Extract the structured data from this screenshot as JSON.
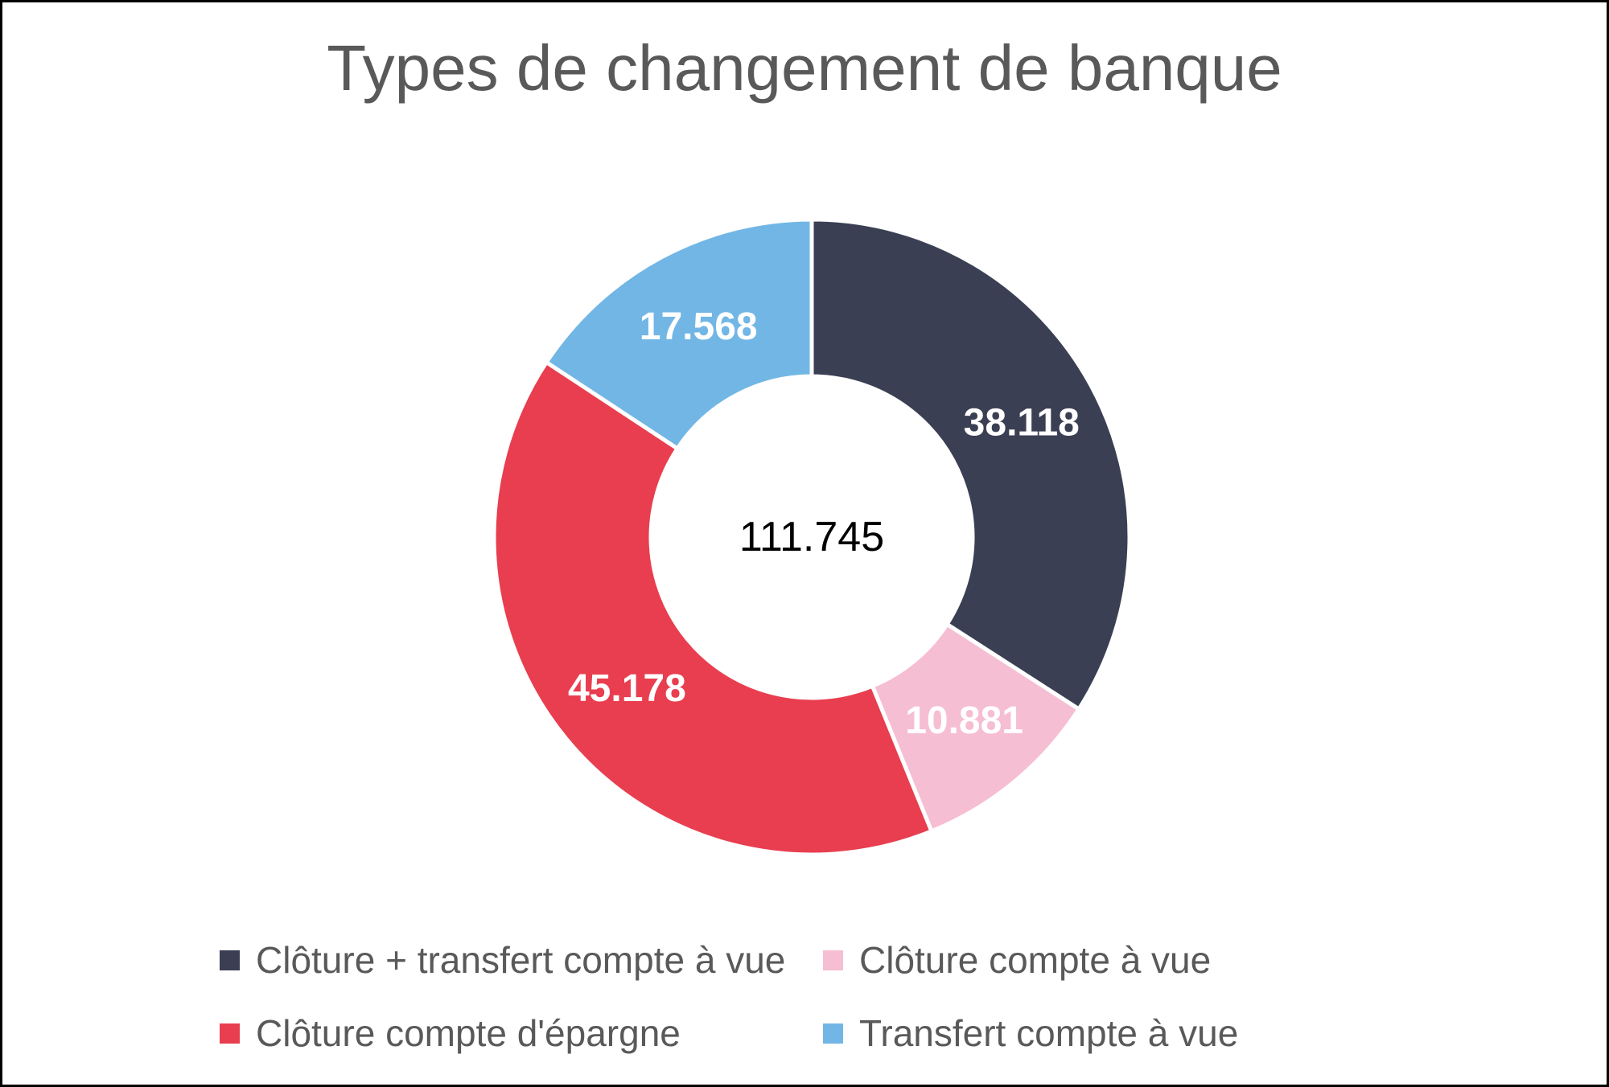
{
  "window": {
    "background": "#ffffff",
    "border_color": "#000000"
  },
  "chart_data": {
    "type": "pie",
    "subtype": "donut",
    "title": "Types de changement de banque",
    "title_color": "#595959",
    "legend_position": "bottom",
    "legend_text_color": "#595959",
    "start_angle_deg": 0,
    "direction": "clockwise",
    "inner_radius_ratio": 0.506,
    "slice_label_color": "#ffffff",
    "separator_color": "#ffffff",
    "center_total": {
      "value": 111745,
      "display": "111.745"
    },
    "slices": [
      {
        "label": "Clôture + transfert compte à vue",
        "value": 38118,
        "display": "38.118",
        "color": "#3A3F53"
      },
      {
        "label": "Clôture compte à vue",
        "value": 10881,
        "display": "10.881",
        "color": "#F6BED3"
      },
      {
        "label": "Clôture compte d'épargne",
        "value": 45178,
        "display": "45.178",
        "color": "#E83E4F"
      },
      {
        "label": "Transfert compte à vue",
        "value": 17568,
        "display": "17.568",
        "color": "#72B6E5"
      }
    ]
  }
}
